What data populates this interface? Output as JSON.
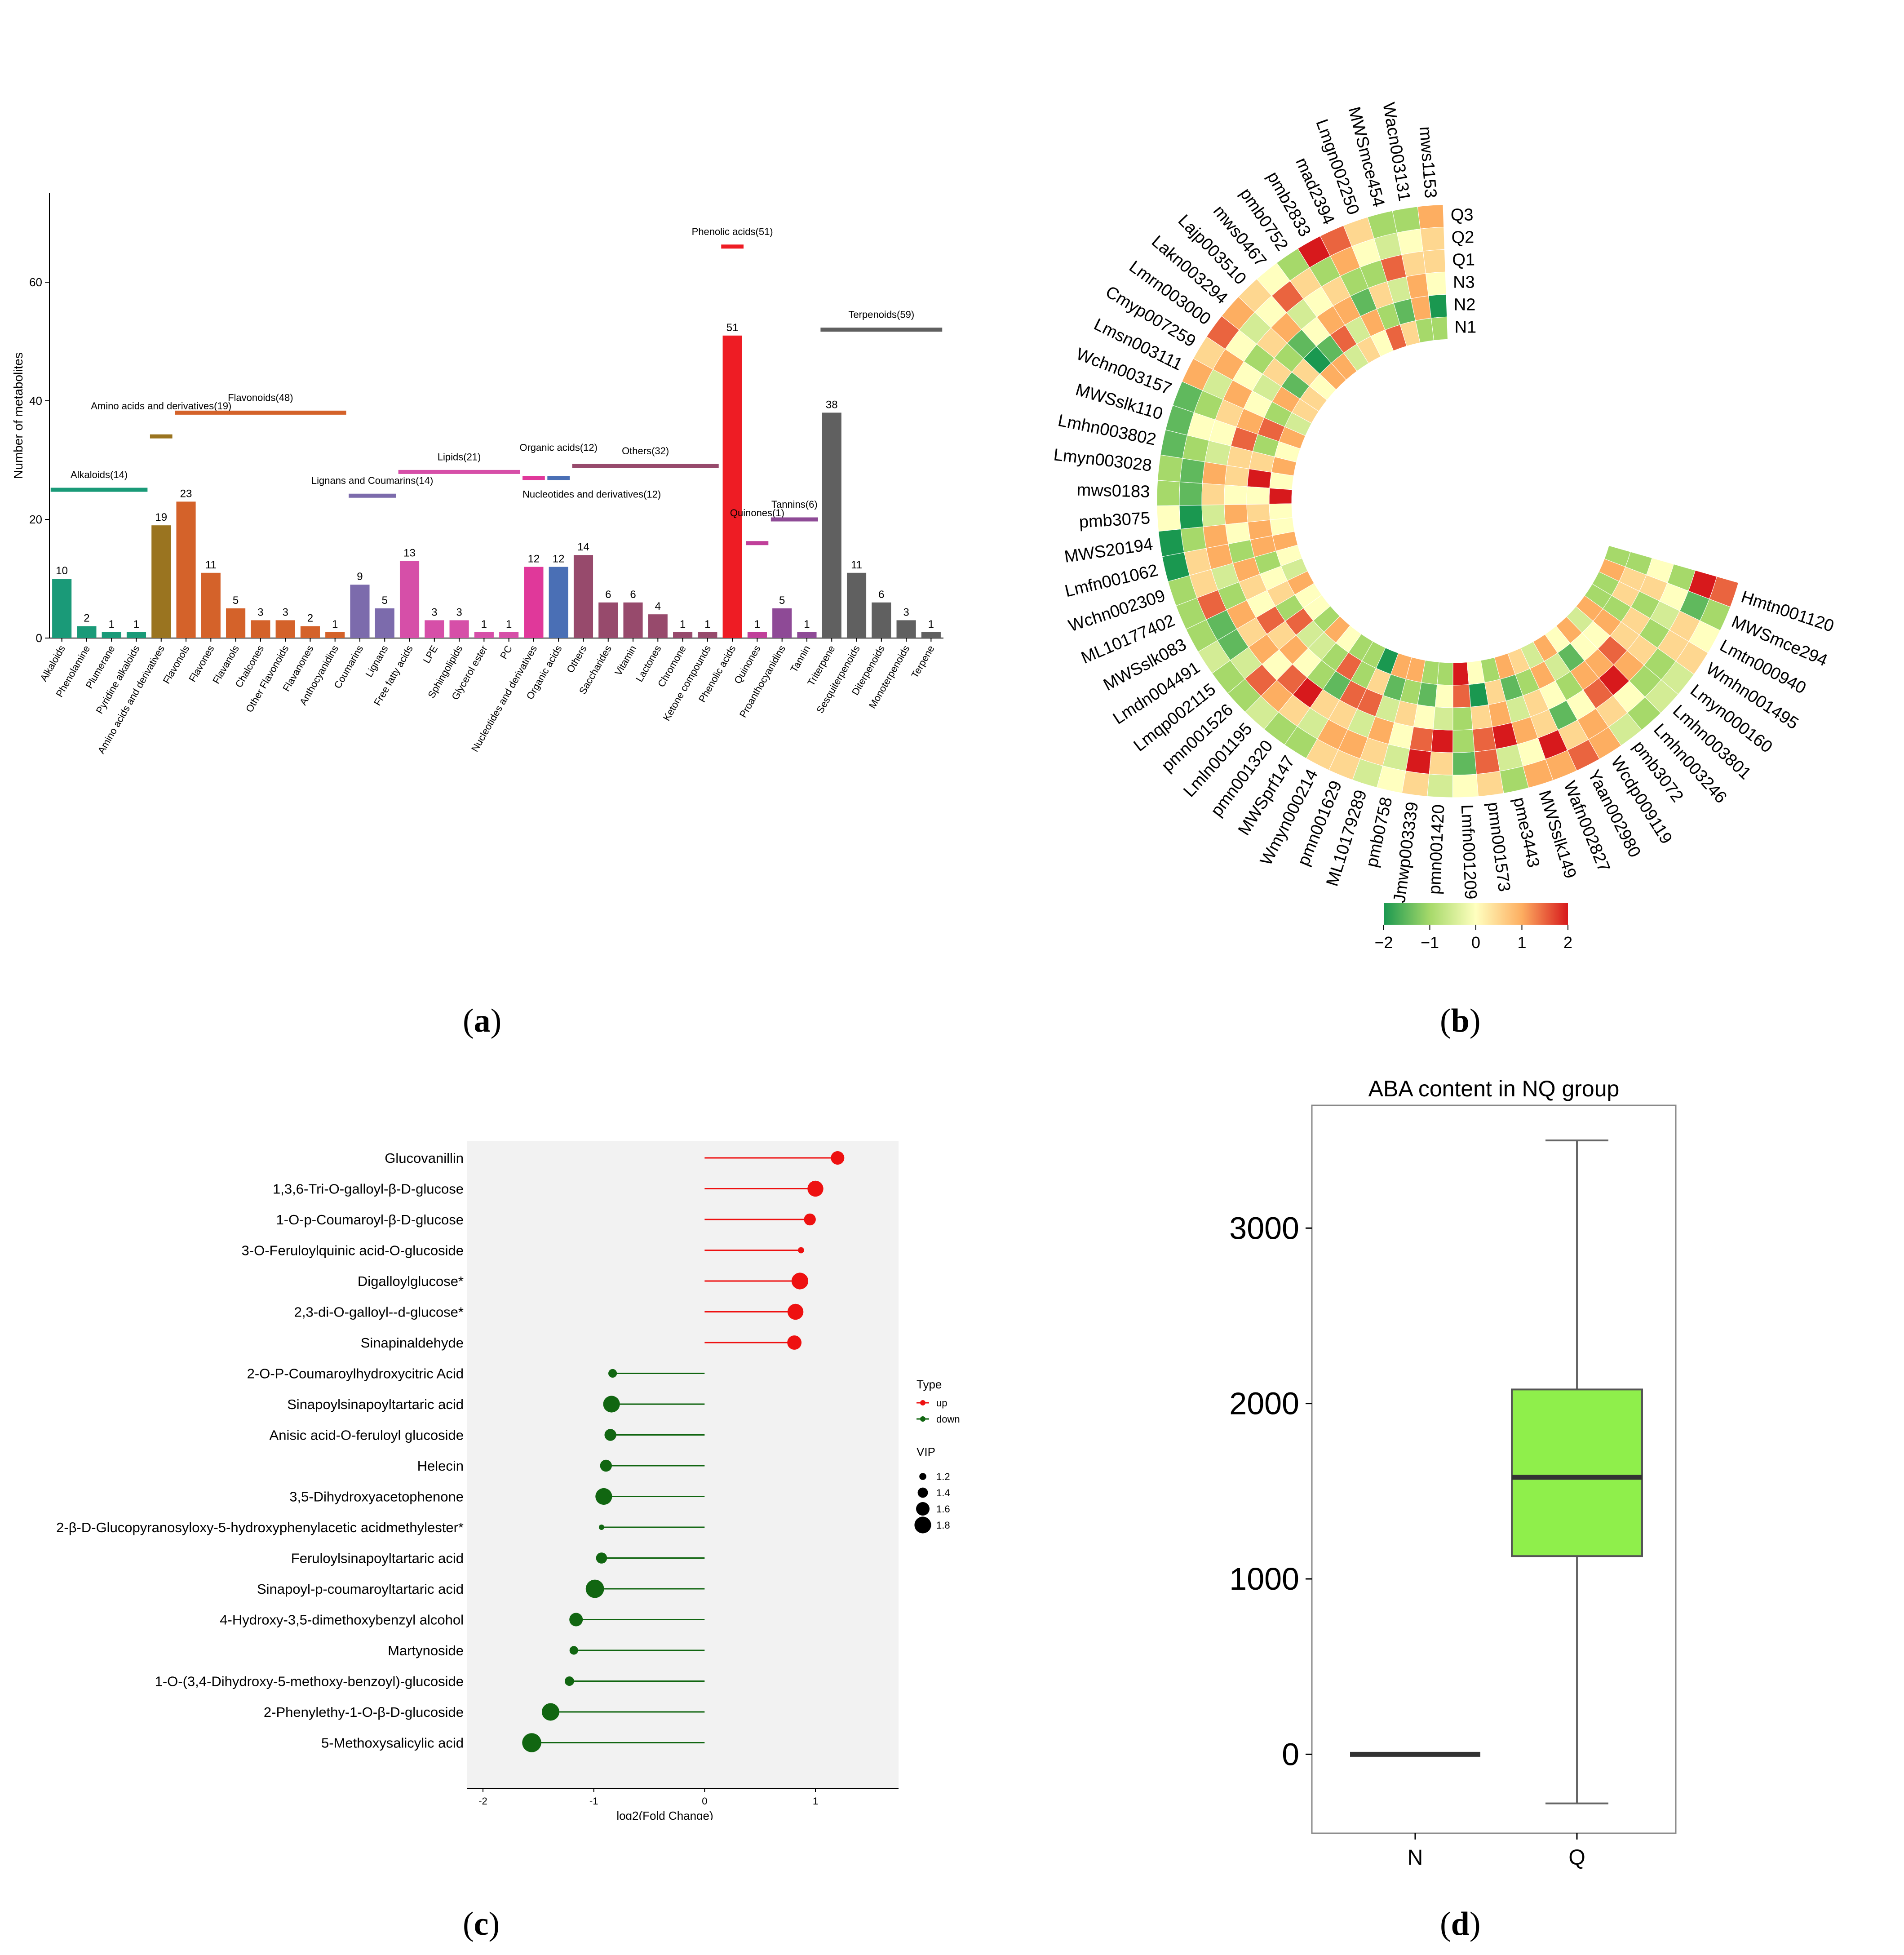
{
  "captions": {
    "a": "a",
    "b": "b",
    "c": "c",
    "d": "d"
  },
  "colors": {
    "grid_bg": "#f2f2f2",
    "up": "#ee1111",
    "down": "#116611",
    "box_fill": "#8fef4b",
    "heat_low": "#1a9850",
    "heat_mid": "#ffffbf",
    "heat_high": "#d7191c"
  },
  "chart_data": [
    {
      "id": "a",
      "type": "bar",
      "ylabel": "Number of metabolites",
      "ylim": [
        0,
        75
      ],
      "yticks": [
        0,
        20,
        40,
        60
      ],
      "categories": [
        "Alkaloids",
        "Phenolamine",
        "Plumerane",
        "Pyridine alkaloids",
        "Amino acids and derivatives",
        "Flavonols",
        "Flavones",
        "Flavanols",
        "Chalcones",
        "Other Flavonoids",
        "Flavanones",
        "Anthocyanidins",
        "Coumarins",
        "Lignans",
        "Free fatty acids",
        "LPE",
        "Sphingolipids",
        "Glycerol ester",
        "PC",
        "Nucleotides and derivatives",
        "Organic acids",
        "Others",
        "Saccharides",
        "Vitamin",
        "Lactones",
        "Chromone",
        "Ketone compounds",
        "Phenolic acids",
        "Quinones",
        "Proanthocyanidins",
        "Tannin",
        "Triterpene",
        "Sesquiterpenoids",
        "Diterpenoids",
        "Monoterpenoids",
        "Terpene"
      ],
      "values": [
        10,
        2,
        1,
        1,
        19,
        23,
        11,
        5,
        3,
        3,
        2,
        1,
        9,
        5,
        13,
        3,
        3,
        1,
        1,
        12,
        12,
        14,
        6,
        6,
        4,
        1,
        1,
        51,
        1,
        5,
        1,
        38,
        11,
        6,
        3,
        1
      ],
      "groups": [
        {
          "label": "Alkaloids(14)",
          "start": 0,
          "end": 3,
          "level": 25,
          "color": "#1a9a78"
        },
        {
          "label": "Amino acids and derivatives(19)",
          "start": 4,
          "end": 4,
          "level": 34,
          "color": "#9a7420"
        },
        {
          "label": "Flavonoids(48)",
          "start": 5,
          "end": 11,
          "level": 38,
          "color": "#d4622a"
        },
        {
          "label": "Lignans and Coumarins(14)",
          "start": 12,
          "end": 13,
          "level": 24,
          "color": "#7c6bac"
        },
        {
          "label": "Lipids(21)",
          "start": 14,
          "end": 18,
          "level": 28,
          "color": "#d64fa8"
        },
        {
          "label": "Nucleotides and derivatives(12)",
          "start": 19,
          "end": 19,
          "level": 27,
          "color": "#e0389a"
        },
        {
          "label": "Organic acids(12)",
          "start": 20,
          "end": 20,
          "level": 27,
          "color": "#4a6fb5"
        },
        {
          "label": "Others(32)",
          "start": 21,
          "end": 26,
          "level": 29,
          "color": "#974a6c"
        },
        {
          "label": "Phenolic acids(51)",
          "start": 27,
          "end": 27,
          "level": 66,
          "color": "#ee1c24"
        },
        {
          "label": "Quinones(1)",
          "start": 28,
          "end": 28,
          "level": 16,
          "color": "#c0409a"
        },
        {
          "label": "Tannins(6)",
          "start": 29,
          "end": 30,
          "level": 20,
          "color": "#8e4a96"
        },
        {
          "label": "Terpenoids(59)",
          "start": 31,
          "end": 35,
          "level": 52,
          "color": "#606060"
        }
      ],
      "bar_colors": [
        "#1a9a78",
        "#1a9a78",
        "#1a9a78",
        "#1a9a78",
        "#9a7420",
        "#d4622a",
        "#d4622a",
        "#d4622a",
        "#d4622a",
        "#d4622a",
        "#d4622a",
        "#d4622a",
        "#7c6bac",
        "#7c6bac",
        "#d64fa8",
        "#d64fa8",
        "#d64fa8",
        "#d64fa8",
        "#d64fa8",
        "#e0389a",
        "#4a6fb5",
        "#974a6c",
        "#974a6c",
        "#974a6c",
        "#974a6c",
        "#974a6c",
        "#974a6c",
        "#ee1c24",
        "#c0409a",
        "#8e4a96",
        "#8e4a96",
        "#606060",
        "#606060",
        "#606060",
        "#606060",
        "#606060"
      ]
    },
    {
      "id": "b",
      "type": "heatmap",
      "rows": [
        "Q3",
        "Q2",
        "Q1",
        "N3",
        "N2",
        "N1"
      ],
      "columns": [
        "mws1153",
        "Wacn003131",
        "MWSmce454",
        "Lmgn002250",
        "mad2394",
        "pmb2833",
        "pmb0752",
        "mws0467",
        "Lajp003510",
        "Lakn003294",
        "Lmrn003000",
        "Cmyp007259",
        "Lmsn003111",
        "Wchn003157",
        "MWSslk110",
        "Lmhn003802",
        "Lmyn003028",
        "mws0183",
        "pmb3075",
        "MWS20194",
        "Lmfn001062",
        "Wchn002309",
        "ML10177402",
        "MWSslk083",
        "Lmdn004491",
        "Lmqp002115",
        "pmn001526",
        "Lmln001195",
        "pmn001320",
        "MWSprf147",
        "Wmyn000214",
        "pmn001629",
        "ML10179289",
        "pmb0758",
        "Jmwp003339",
        "pmn001420",
        "Lmfn001209",
        "pmn001573",
        "pme3443",
        "MWSslk149",
        "Wafn002827",
        "Yaan002980",
        "Wcdp009119",
        "pmb3072",
        "Lmhn003246",
        "Lmhn003801",
        "Lmyn000160",
        "Wmhn001495",
        "Lmtn000940",
        "MWSmce294",
        "Hmtn001120"
      ],
      "values": [
        [
          1,
          -1,
          -1,
          0.5,
          1.5,
          2,
          -1,
          0,
          0.5,
          1,
          1.5,
          0.5,
          1,
          -1.5,
          -1.5,
          -1.5,
          -1,
          -1,
          0,
          -2,
          -2,
          -1,
          -1,
          -1,
          -0.5,
          -1,
          -1,
          -0.5,
          -1,
          -1,
          0.5,
          0.5,
          -0.5,
          0,
          0.5,
          -0.5,
          0,
          0.5,
          -1,
          1,
          1,
          1.5,
          1,
          -0.5,
          -1,
          -0.5,
          -0.5,
          0.5,
          0,
          -1,
          1.5
        ],
        [
          0.5,
          0,
          -0.5,
          0,
          1,
          -1,
          0.5,
          1.5,
          0,
          -0.5,
          0,
          1,
          -0.5,
          -1,
          0,
          -1,
          -1.5,
          -1.5,
          -2,
          -1,
          0.5,
          0.5,
          1.5,
          -1.5,
          -1.5,
          -0.5,
          1.5,
          1,
          0.5,
          -0.5,
          1,
          1,
          0.5,
          -0.5,
          2,
          0.5,
          -1.5,
          1.5,
          -0.5,
          0,
          2,
          0.5,
          1,
          0.5,
          0,
          -1,
          -1,
          0.5,
          0.5,
          -1.5,
          2
        ],
        [
          0.5,
          0.5,
          1.5,
          -1,
          -1,
          0.5,
          0,
          -0.5,
          1,
          0.5,
          -1,
          0,
          1,
          0.5,
          0,
          -0.5,
          1,
          0.5,
          -0.5,
          1,
          1,
          -0.5,
          -1,
          1,
          0.5,
          1,
          0,
          1.5,
          2,
          0.5,
          0.5,
          -0.5,
          1,
          0,
          1.5,
          2,
          -1,
          1.5,
          2,
          1,
          0.5,
          -1.5,
          0,
          1.5,
          2,
          1,
          0.5,
          -1,
          -0.5,
          0,
          -1
        ],
        [
          0,
          1,
          -0.5,
          0.5,
          -1.5,
          1,
          1,
          0,
          -1.5,
          -1,
          0.5,
          -0.5,
          0,
          1,
          1.5,
          0.5,
          0.5,
          0,
          1,
          0,
          -1,
          1,
          0.5,
          0,
          1.5,
          0.5,
          1,
          0,
          -1,
          -1.5,
          1.5,
          1.5,
          -0.5,
          0.5,
          0,
          -0.5,
          -1,
          0.5,
          1,
          -0.5,
          0.5,
          0,
          -1,
          1,
          1,
          1.5,
          0.5,
          0.5,
          -1,
          0.5,
          0
        ],
        [
          -2,
          1,
          -1.5,
          -1,
          1,
          -0.5,
          1.5,
          -1.5,
          -2,
          0.5,
          -1.5,
          1,
          -1,
          1.5,
          -1,
          0.5,
          2,
          0,
          0.5,
          1,
          1,
          -1,
          0,
          0.5,
          -1,
          1.5,
          -0.5,
          -0.5,
          -1,
          1.5,
          -1,
          0.5,
          -1.5,
          -1,
          -1.5,
          0,
          1.5,
          -2,
          0.5,
          -1.5,
          -1,
          1,
          -0.5,
          -1.5,
          0,
          0,
          1,
          -1,
          0.5,
          0.5,
          -1
        ],
        [
          -1,
          -1,
          0.5,
          1.5,
          0,
          0.5,
          -0.5,
          1,
          1,
          0,
          0.5,
          0.5,
          -0.5,
          1,
          0,
          1,
          0,
          2,
          0,
          0,
          1,
          0,
          -0.5,
          1,
          0,
          0,
          -1,
          1,
          0,
          -1,
          -1,
          -2,
          1,
          1,
          -1,
          -1,
          2,
          0,
          -1,
          1,
          0.5,
          -0.5,
          1,
          0,
          1,
          -0.5,
          1,
          -1,
          -1,
          1,
          -1
        ]
      ],
      "legend": {
        "min": -2,
        "max": 2,
        "ticks": [
          "−2",
          "−1",
          "0",
          "1",
          "2"
        ]
      }
    },
    {
      "id": "c",
      "type": "scatter",
      "xlabel": "log2(Fold Change)",
      "xlim": [
        -2,
        1.75
      ],
      "xticks": [
        -2,
        -1,
        0,
        1
      ],
      "items": [
        {
          "name": "Glucovanillin",
          "fc": 1.2,
          "vip": 1.6,
          "type": "up"
        },
        {
          "name": "1,3,6-Tri-O-galloyl-β-D-glucose",
          "fc": 1.0,
          "vip": 1.75,
          "type": "up"
        },
        {
          "name": "1-O-p-Coumaroyl-β-D-glucose",
          "fc": 0.95,
          "vip": 1.5,
          "type": "up"
        },
        {
          "name": "3-O-Feruloylquinic acid-O-glucoside",
          "fc": 0.87,
          "vip": 1.15,
          "type": "up"
        },
        {
          "name": "Digalloylglucose*",
          "fc": 0.86,
          "vip": 1.8,
          "type": "up"
        },
        {
          "name": "2,3-di-O-galloyl--d-glucose*",
          "fc": 0.82,
          "vip": 1.75,
          "type": "up"
        },
        {
          "name": "Sinapinaldehyde",
          "fc": 0.81,
          "vip": 1.65,
          "type": "up"
        },
        {
          "name": "2-O-P-Coumaroylhydroxycitric Acid",
          "fc": -0.83,
          "vip": 1.3,
          "type": "down"
        },
        {
          "name": "Sinapoylsinapoyltartaric acid",
          "fc": -0.84,
          "vip": 1.8,
          "type": "down"
        },
        {
          "name": "Anisic acid-O-feruloyl glucoside",
          "fc": -0.85,
          "vip": 1.5,
          "type": "down"
        },
        {
          "name": "Helecin",
          "fc": -0.89,
          "vip": 1.5,
          "type": "down"
        },
        {
          "name": "3,5-Dihydroxyacetophenone",
          "fc": -0.91,
          "vip": 1.8,
          "type": "down"
        },
        {
          "name": "2-β-D-Glucopyranosyloxy-5-hydroxyphenylacetic acidmethylester*",
          "fc": -0.93,
          "vip": 1.1,
          "type": "down"
        },
        {
          "name": "Feruloylsinapoyltartaric acid",
          "fc": -0.93,
          "vip": 1.45,
          "type": "down"
        },
        {
          "name": "Sinapoyl-p-coumaroyltartaric acid",
          "fc": -0.99,
          "vip": 1.9,
          "type": "down"
        },
        {
          "name": "4-Hydroxy-3,5-dimethoxybenzyl alcohol",
          "fc": -1.16,
          "vip": 1.6,
          "type": "down"
        },
        {
          "name": "Martynoside",
          "fc": -1.18,
          "vip": 1.3,
          "type": "down"
        },
        {
          "name": "1-O-(3,4-Dihydroxy-5-methoxy-benzoyl)-glucoside",
          "fc": -1.22,
          "vip": 1.35,
          "type": "down"
        },
        {
          "name": "2-Phenylethy-1-O-β-D-glucoside",
          "fc": -1.39,
          "vip": 1.85,
          "type": "down"
        },
        {
          "name": "5-Methoxysalicylic acid",
          "fc": -1.56,
          "vip": 1.95,
          "type": "down"
        }
      ],
      "legend": {
        "type_title": "Type",
        "type_up": "up",
        "type_down": "down",
        "vip_title": "VIP",
        "vip_values": [
          "1.2",
          "1.4",
          "1.6",
          "1.8"
        ]
      }
    },
    {
      "id": "d",
      "type": "box",
      "title": "ABA content in NQ group",
      "categories": [
        "N",
        "Q"
      ],
      "ylim": [
        -450,
        3700
      ],
      "yticks": [
        0,
        1000,
        2000,
        3000
      ],
      "boxes": [
        {
          "name": "N",
          "min": 0,
          "q1": 0,
          "median": 0,
          "q3": 0,
          "max": 0
        },
        {
          "name": "Q",
          "min": -280,
          "q1": 1130,
          "median": 1580,
          "q3": 2080,
          "max": 3500
        }
      ]
    }
  ]
}
